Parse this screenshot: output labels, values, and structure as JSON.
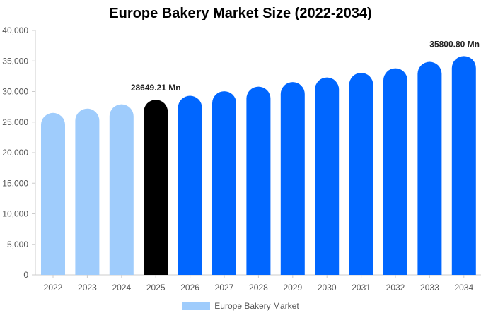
{
  "colors": {
    "historical": "#9fccfc",
    "current": "#000000",
    "forecast": "#0066ff",
    "axis": "#cccccc"
  },
  "chart_data": {
    "type": "bar",
    "title": "Europe Bakery Market Size (2022-2034)",
    "categories": [
      "2022",
      "2023",
      "2024",
      "2025",
      "2026",
      "2027",
      "2028",
      "2029",
      "2030",
      "2031",
      "2032",
      "2033",
      "2034"
    ],
    "series": [
      {
        "name": "Europe Bakery Market",
        "values": [
          26500,
          27200,
          27900,
          28649.21,
          29300,
          30050,
          30800,
          31550,
          32300,
          33050,
          33800,
          34850,
          35800.8
        ]
      }
    ],
    "bar_colors": [
      "historical",
      "historical",
      "historical",
      "current",
      "forecast",
      "forecast",
      "forecast",
      "forecast",
      "forecast",
      "forecast",
      "forecast",
      "forecast",
      "forecast"
    ],
    "data_labels": [
      {
        "category": "2025",
        "text": "28649.21 Mn"
      },
      {
        "category": "2034",
        "text": "35800.80 Mn"
      }
    ],
    "y_ticks": [
      "0",
      "5,000",
      "10,000",
      "15,000",
      "20,000",
      "25,000",
      "30,000",
      "35,000",
      "40,000"
    ],
    "ylim": [
      0,
      40000
    ],
    "grid": false,
    "legend": {
      "position": "bottom",
      "label": "Europe Bakery Market"
    }
  }
}
